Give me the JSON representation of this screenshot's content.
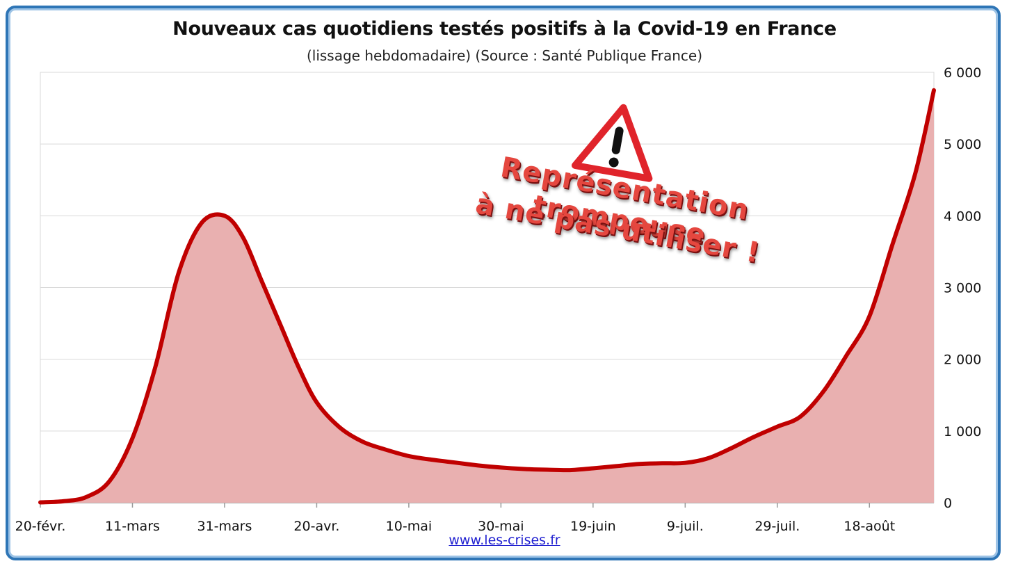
{
  "title": "Nouveaux cas quotidiens testés positifs à la Covid-19 en France",
  "subtitle": "(lissage hebdomadaire) (Source : Santé Publique France)",
  "credit": "www.les-crises.fr",
  "warning": {
    "line1": "Représentation trompeuse",
    "line2": "à ne pas utiliser !",
    "icon": "warning-triangle-icon"
  },
  "colors": {
    "line": "#c00000",
    "fill": "#e9b0b0",
    "frame": "#2e75b6",
    "grid": "#d9d9d9"
  },
  "chart_data": {
    "type": "area",
    "title": "Nouveaux cas quotidiens testés positifs à la Covid-19 en France",
    "subtitle": "(lissage hebdomadaire) (Source : Santé Publique France)",
    "xlabel": "",
    "ylabel": "",
    "x_tick_labels": [
      "20-févr.",
      "11-mars",
      "31-mars",
      "20-avr.",
      "10-mai",
      "30-mai",
      "19-juin",
      "9-juil.",
      "29-juil.",
      "18-août"
    ],
    "y_tick_labels": [
      "0",
      "1 000",
      "2 000",
      "3 000",
      "4 000",
      "5 000",
      "6 000"
    ],
    "ylim": [
      0,
      6000
    ],
    "y_axis_position": "right",
    "grid": true,
    "legend": "none",
    "series": [
      {
        "x": [
          "2020-02-20",
          "2020-02-25",
          "2020-03-01",
          "2020-03-06",
          "2020-03-11",
          "2020-03-16",
          "2020-03-21",
          "2020-03-26",
          "2020-03-31",
          "2020-04-04",
          "2020-04-08",
          "2020-04-12",
          "2020-04-16",
          "2020-04-20",
          "2020-04-25",
          "2020-04-30",
          "2020-05-05",
          "2020-05-10",
          "2020-05-15",
          "2020-05-20",
          "2020-05-25",
          "2020-05-30",
          "2020-06-04",
          "2020-06-09",
          "2020-06-14",
          "2020-06-19",
          "2020-06-24",
          "2020-06-29",
          "2020-07-04",
          "2020-07-09",
          "2020-07-14",
          "2020-07-19",
          "2020-07-24",
          "2020-07-29",
          "2020-08-03",
          "2020-08-08",
          "2020-08-13",
          "2020-08-18",
          "2020-08-23",
          "2020-08-28",
          "2020-09-01"
        ],
        "values": [
          5,
          20,
          80,
          300,
          900,
          1900,
          3200,
          3900,
          4000,
          3700,
          3100,
          2500,
          1900,
          1400,
          1050,
          850,
          740,
          650,
          600,
          560,
          520,
          490,
          470,
          460,
          455,
          480,
          510,
          540,
          550,
          555,
          620,
          760,
          920,
          1060,
          1200,
          1550,
          2050,
          2600,
          3600,
          4600,
          5750
        ]
      }
    ]
  }
}
